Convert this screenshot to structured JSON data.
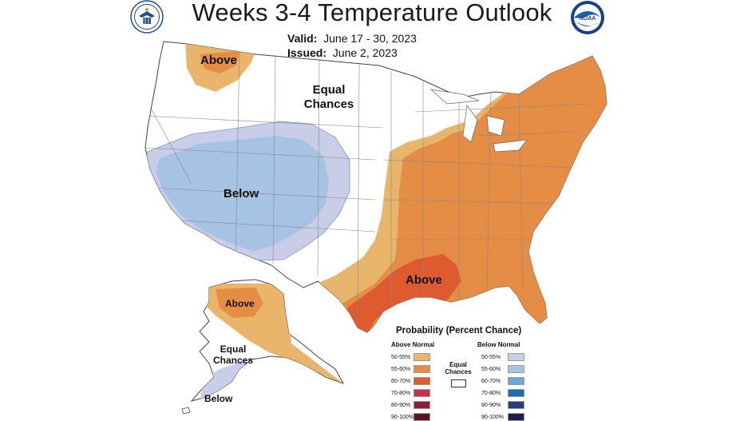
{
  "header": {
    "title": "Weeks 3-4 Temperature Outlook",
    "valid_label": "Valid:",
    "valid_value": "June 17 - 30, 2023",
    "issued_label": "Issued:",
    "issued_value": "June 2, 2023",
    "logo_right_text": "NOAA"
  },
  "map_labels": {
    "above_northwest": "Above",
    "equal_chances_line1": "Equal",
    "equal_chances_line2": "Chances",
    "below_west": "Below",
    "above_gulf": "Above",
    "alaska_above": "Above",
    "alaska_equal_line1": "Equal",
    "alaska_equal_line2": "Chances",
    "alaska_below": "Below"
  },
  "legend": {
    "title": "Probability (Percent Chance)",
    "above_header": "Above Normal",
    "below_header": "Below Normal",
    "equal_line1": "Equal",
    "equal_line2": "Chances",
    "above_rows": [
      {
        "label": "50-55%",
        "color": "#e8b56a"
      },
      {
        "label": "55-60%",
        "color": "#e58c45"
      },
      {
        "label": "60-70%",
        "color": "#de5b30"
      },
      {
        "label": "70-80%",
        "color": "#c9304a"
      },
      {
        "label": "80-90%",
        "color": "#8f1d35"
      },
      {
        "label": "90-100%",
        "color": "#5a1620"
      }
    ],
    "below_rows": [
      {
        "label": "50-55%",
        "color": "#c8cde8"
      },
      {
        "label": "55-60%",
        "color": "#a6c3e4"
      },
      {
        "label": "60-70%",
        "color": "#6fa6d9"
      },
      {
        "label": "70-80%",
        "color": "#1d6cb0"
      },
      {
        "label": "80-90%",
        "color": "#283a86"
      },
      {
        "label": "90-100%",
        "color": "#1f1c55"
      }
    ]
  }
}
